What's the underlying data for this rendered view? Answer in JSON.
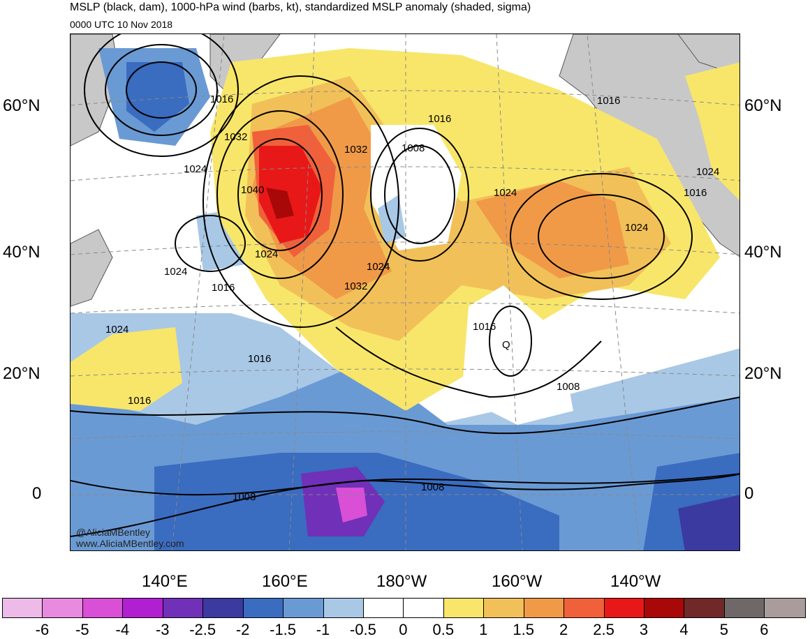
{
  "header": {
    "title": "MSLP (black, dam), 1000-hPa wind (barbs, kt), standardized MSLP anomaly (shaded, sigma)",
    "subtitle": "0000 UTC 10 Nov 2018"
  },
  "axes": {
    "lat_left": [
      "60°N",
      "40°N",
      "20°N",
      "0"
    ],
    "lat_right": [
      "60°N",
      "40°N",
      "20°N",
      "0"
    ],
    "lon_bottom": [
      "140°E",
      "160°E",
      "180°W",
      "160°W",
      "140°W"
    ]
  },
  "contour_labels": [
    "1016",
    "1032",
    "1024",
    "1040",
    "1024",
    "1024",
    "1016",
    "1024",
    "1016",
    "1016",
    "1032",
    "1024",
    "1032",
    "1008",
    "1016",
    "1024",
    "1016",
    "1016",
    "1024",
    "1016",
    "1024",
    "1008",
    "1008",
    "1008"
  ],
  "low_marker": "Q",
  "credit": {
    "line1": "@AliciaMBentley",
    "line2": "www.AliciaMBentley.com"
  },
  "colorbar": {
    "colors": [
      "#eebbe8",
      "#e88be0",
      "#d94fd6",
      "#b01fd0",
      "#7030b8",
      "#3a3aa0",
      "#3a6cc0",
      "#6a9ad4",
      "#a8c8e6",
      "#ffffff",
      "#ffffff",
      "#f8e66a",
      "#f2c058",
      "#f09a48",
      "#f0603a",
      "#e81818",
      "#a80808",
      "#702828",
      "#706868",
      "#a89c9c"
    ],
    "ticks": [
      "-6",
      "-5",
      "-4",
      "-3",
      "-2.5",
      "-2",
      "-1.5",
      "-1",
      "-0.5",
      "0",
      "0.5",
      "1",
      "1.5",
      "2",
      "2.5",
      "3",
      "4",
      "5",
      "6"
    ]
  }
}
